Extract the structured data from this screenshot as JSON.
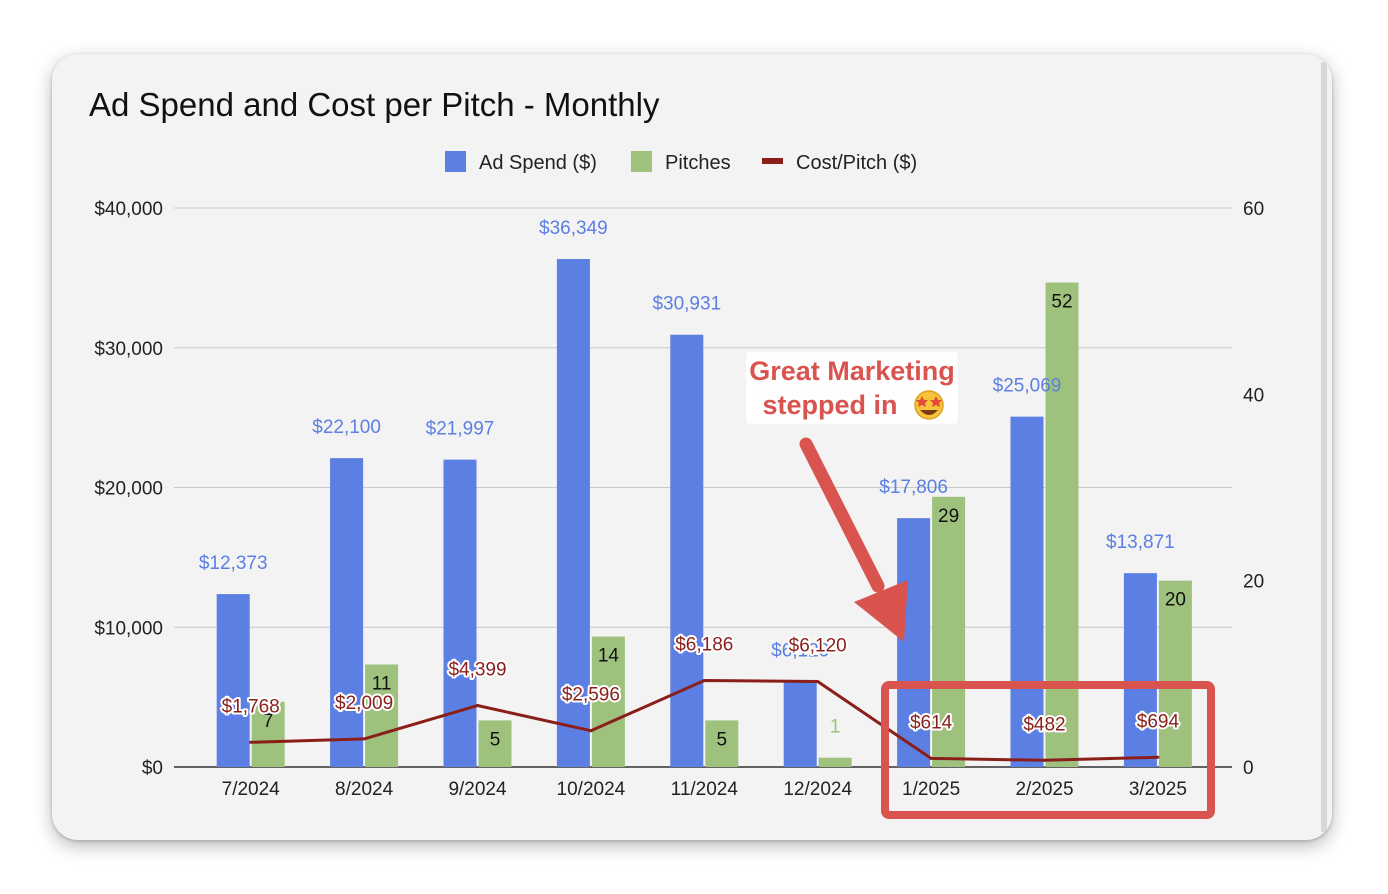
{
  "chart_data": {
    "type": "bar",
    "title": "Ad Spend and Cost per Pitch - Monthly",
    "categories": [
      "7/2024",
      "8/2024",
      "9/2024",
      "10/2024",
      "11/2024",
      "12/2024",
      "1/2025",
      "2/2025",
      "3/2025"
    ],
    "series": [
      {
        "name": "Ad Spend ($)",
        "type": "bar",
        "axis": "left",
        "color": "#5b7fe3",
        "values": [
          12373,
          22100,
          21997,
          36349,
          30931,
          6120,
          17806,
          25069,
          13871
        ],
        "labels": [
          "$12,373",
          "$22,100",
          "$21,997",
          "$36,349",
          "$30,931",
          "$6,120",
          "$17,806",
          "$25,069",
          "$13,871"
        ]
      },
      {
        "name": "Pitches",
        "type": "bar",
        "axis": "right",
        "color": "#9ec27e",
        "values": [
          7,
          11,
          5,
          14,
          5,
          1,
          29,
          52,
          20
        ],
        "labels": [
          "7",
          "11",
          "5",
          "14",
          "5",
          "1",
          "29",
          "52",
          "20"
        ]
      },
      {
        "name": "Cost/Pitch ($)",
        "type": "line",
        "axis": "left",
        "color": "#8a1f1a",
        "values": [
          1768,
          2009,
          4399,
          2596,
          6186,
          6120,
          614,
          482,
          694
        ],
        "labels": [
          "$1,768",
          "$2,009",
          "$4,399",
          "$2,596",
          "$6,186",
          "$6,120",
          "$614",
          "$482",
          "$694"
        ]
      }
    ],
    "ylim_left": [
      0,
      40000
    ],
    "ylim_right": [
      0,
      60
    ],
    "left_ticks": [
      {
        "value": 0,
        "label": "$0"
      },
      {
        "value": 10000,
        "label": "$10,000"
      },
      {
        "value": 20000,
        "label": "$20,000"
      },
      {
        "value": 30000,
        "label": "$30,000"
      },
      {
        "value": 40000,
        "label": "$40,000"
      }
    ],
    "right_ticks": [
      {
        "value": 0,
        "label": "0"
      },
      {
        "value": 20,
        "label": "20"
      },
      {
        "value": 40,
        "label": "40"
      },
      {
        "value": 60,
        "label": "60"
      }
    ],
    "legend_position": "top-center",
    "grid": true,
    "annotation": {
      "lines": [
        "Great Marketing",
        "stepped in"
      ],
      "emoji": "🤩",
      "color": "#d9534f",
      "highlight_categories": [
        "1/2025",
        "2/2025",
        "3/2025"
      ]
    }
  }
}
